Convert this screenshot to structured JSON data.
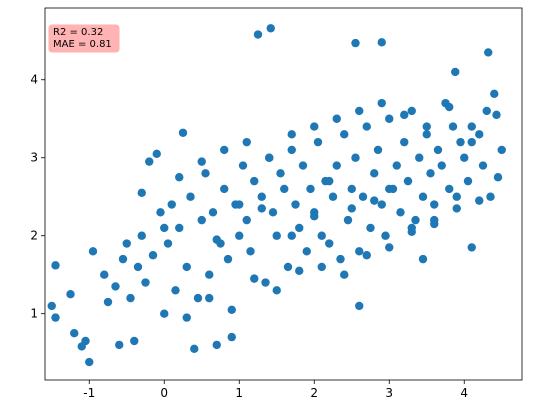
{
  "chart_data": {
    "type": "scatter",
    "color": "#1f77b4",
    "annotation": [
      "R2 = 0.32",
      "MAE = 0.81"
    ],
    "xlim": [
      -1.59,
      4.77
    ],
    "ylim": [
      0.15,
      4.92
    ],
    "xticks": [
      -1,
      0,
      1,
      2,
      3,
      4
    ],
    "yticks": [
      1,
      2,
      3,
      4
    ],
    "x": [
      1.25,
      1.42,
      2.55,
      2.9,
      4.32,
      3.88,
      -1.45,
      -1.0,
      -1.5,
      -1.45,
      0.4,
      0.7,
      0.9,
      -0.6,
      -0.4,
      0.25,
      -0.1,
      -0.2,
      4.5,
      4.45,
      4.4,
      4.43,
      3.45,
      2.6,
      4.1,
      -1.25,
      -1.2,
      -1.1,
      -1.05,
      -0.95,
      -0.8,
      -0.75,
      -0.65,
      -0.55,
      -0.5,
      -0.45,
      -0.35,
      -0.3,
      -0.25,
      -0.15,
      -0.05,
      0.0,
      0.05,
      0.1,
      0.15,
      0.2,
      0.3,
      0.35,
      0.45,
      0.5,
      0.55,
      0.6,
      0.65,
      0.75,
      0.8,
      0.85,
      0.95,
      1.0,
      1.05,
      1.1,
      1.15,
      1.2,
      1.3,
      1.35,
      1.4,
      1.45,
      1.5,
      1.55,
      1.6,
      1.65,
      1.7,
      1.75,
      1.8,
      1.85,
      1.9,
      1.95,
      2.0,
      2.05,
      2.1,
      2.15,
      2.2,
      2.25,
      2.3,
      2.35,
      2.4,
      2.45,
      2.5,
      2.55,
      2.6,
      2.65,
      2.7,
      2.75,
      2.8,
      2.85,
      2.9,
      2.95,
      3.0,
      3.05,
      3.1,
      3.15,
      3.2,
      3.25,
      3.3,
      3.35,
      3.4,
      3.45,
      3.5,
      3.55,
      3.6,
      3.65,
      3.7,
      3.75,
      3.8,
      3.85,
      3.9,
      3.95,
      4.0,
      4.05,
      4.1,
      4.2,
      4.25,
      4.3,
      4.35,
      0.3,
      0.6,
      0.9,
      1.2,
      1.5,
      1.8,
      2.1,
      2.4,
      2.7,
      3.0,
      3.3,
      3.6,
      3.9,
      4.2,
      0.2,
      0.5,
      0.8,
      1.1,
      1.4,
      1.7,
      2.0,
      2.3,
      2.6,
      2.9,
      3.2,
      3.5,
      3.8,
      4.1,
      -0.3,
      0.0,
      1.0,
      2.0,
      3.0,
      2.5,
      1.7,
      3.3,
      2.2,
      2.8,
      1.3,
      0.7,
      3.6
    ],
    "y": [
      4.58,
      4.66,
      4.47,
      4.48,
      4.35,
      4.1,
      1.62,
      0.38,
      1.1,
      0.95,
      0.55,
      0.6,
      0.7,
      0.6,
      0.65,
      3.32,
      3.05,
      2.95,
      3.1,
      2.75,
      3.82,
      3.55,
      1.7,
      1.1,
      1.85,
      1.25,
      0.75,
      0.58,
      0.65,
      1.8,
      1.5,
      1.15,
      1.35,
      1.7,
      1.9,
      1.2,
      1.6,
      2.0,
      1.4,
      1.75,
      2.3,
      1.0,
      1.9,
      2.4,
      1.3,
      2.1,
      1.6,
      2.5,
      1.2,
      2.2,
      2.8,
      1.5,
      2.3,
      1.9,
      2.6,
      1.7,
      2.4,
      2.0,
      2.9,
      2.2,
      1.8,
      2.7,
      2.5,
      1.4,
      3.0,
      2.3,
      2.0,
      2.8,
      2.6,
      1.6,
      3.1,
      2.4,
      2.1,
      2.9,
      1.8,
      2.6,
      2.3,
      3.2,
      2.0,
      2.7,
      1.9,
      2.5,
      2.9,
      1.7,
      3.3,
      2.2,
      2.6,
      3.0,
      1.8,
      2.5,
      3.4,
      2.1,
      2.8,
      3.1,
      2.4,
      2.0,
      3.5,
      2.6,
      2.9,
      2.3,
      3.2,
      2.7,
      3.6,
      2.2,
      3.0,
      2.5,
      3.3,
      2.8,
      2.4,
      3.1,
      2.9,
      3.7,
      2.6,
      3.4,
      2.5,
      3.2,
      3.0,
      2.7,
      3.4,
      3.3,
      2.9,
      3.6,
      2.5,
      0.95,
      1.2,
      1.05,
      1.45,
      1.3,
      1.55,
      1.6,
      1.5,
      1.75,
      1.85,
      2.05,
      2.15,
      2.35,
      2.45,
      2.75,
      2.95,
      3.1,
      3.2,
      3.0,
      3.3,
      3.4,
      3.5,
      3.6,
      3.7,
      3.55,
      3.4,
      3.65,
      3.2,
      2.55,
      2.1,
      2.4,
      2.25,
      2.6,
      2.35,
      2.0,
      2.1,
      2.7,
      2.45,
      2.35,
      1.95,
      2.2
    ]
  }
}
